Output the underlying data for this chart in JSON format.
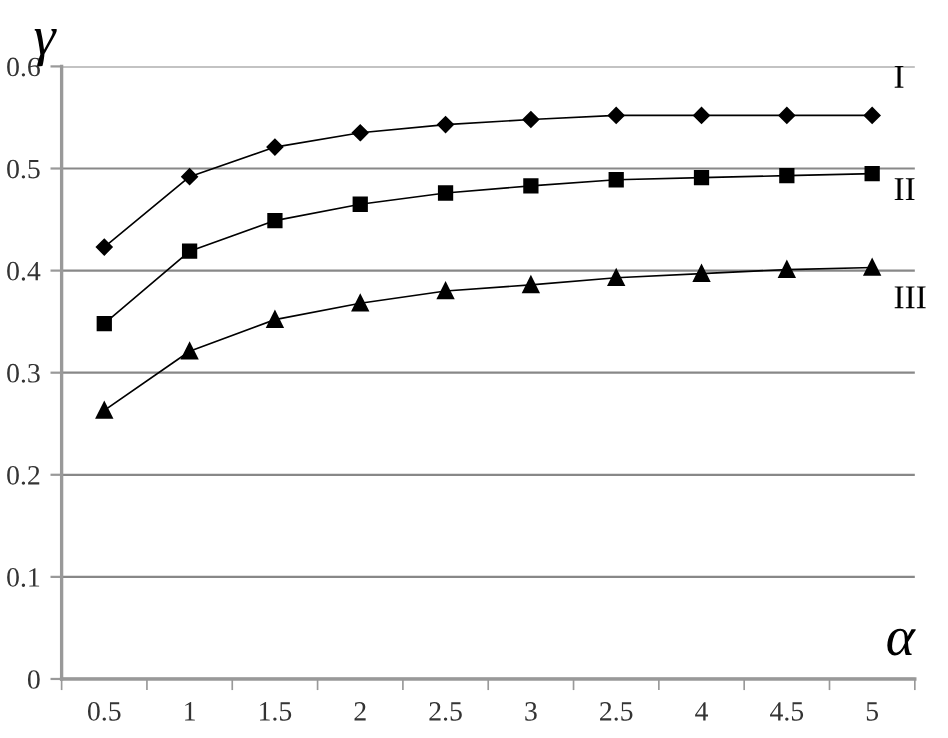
{
  "chart_data": {
    "type": "line",
    "xlabel": "α",
    "ylabel": "γ",
    "categories": [
      "0.5",
      "1",
      "1.5",
      "2",
      "2.5",
      "3",
      "2.5",
      "4",
      "4.5",
      "5"
    ],
    "series": [
      {
        "name": "I",
        "color": "#000000",
        "marker": "diamond",
        "values": [
          0.423,
          0.492,
          0.521,
          0.535,
          0.543,
          0.548,
          0.552,
          0.552,
          0.552,
          0.552
        ]
      },
      {
        "name": "II",
        "color": "#000000",
        "marker": "square",
        "values": [
          0.348,
          0.419,
          0.449,
          0.465,
          0.476,
          0.483,
          0.489,
          0.491,
          0.493,
          0.495
        ]
      },
      {
        "name": "III",
        "color": "#000000",
        "marker": "triangle",
        "values": [
          0.263,
          0.321,
          0.352,
          0.368,
          0.38,
          0.386,
          0.393,
          0.397,
          0.401,
          0.403
        ]
      }
    ],
    "ylim": [
      0,
      0.6
    ],
    "yticks": [
      0,
      0.1,
      0.2,
      0.3,
      0.4,
      0.5,
      0.6
    ],
    "grid": "y",
    "line_style": "solid",
    "legend": false
  }
}
